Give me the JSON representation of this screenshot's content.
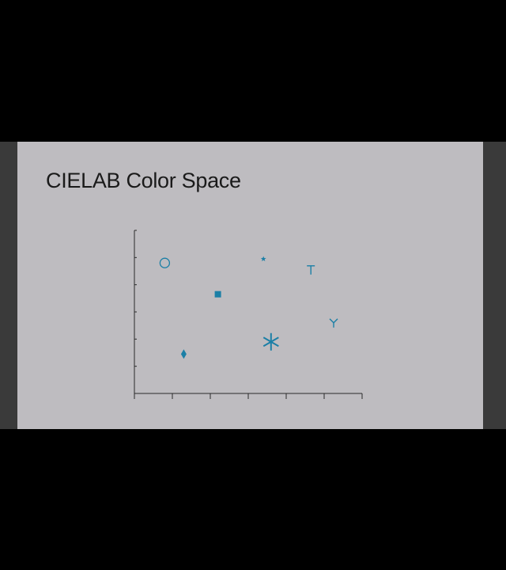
{
  "slide": {
    "title": "CIELAB Color Space"
  },
  "colors": {
    "marker": "#1b7fa6",
    "axis": "#2a2a2a",
    "slide_background": "#bebcc0",
    "letterbox": "#000000",
    "side_panel": "#3a3a3a"
  },
  "chart_data": {
    "type": "scatter",
    "title": "",
    "xlabel": "",
    "ylabel": "",
    "xlim": [
      0,
      6
    ],
    "ylim": [
      0,
      6
    ],
    "x_ticks": [
      0,
      1,
      2,
      3,
      4,
      5,
      6
    ],
    "y_ticks": [
      0,
      1,
      2,
      3,
      4,
      5,
      6
    ],
    "tick_labels_shown": false,
    "grid": false,
    "legend": "none",
    "points": [
      {
        "x": 0.8,
        "y": 4.8,
        "marker": "circle-open",
        "icon": "circle-icon"
      },
      {
        "x": 2.2,
        "y": 3.65,
        "marker": "square-filled",
        "icon": "square-icon"
      },
      {
        "x": 3.4,
        "y": 4.95,
        "marker": "star-small",
        "icon": "star-icon"
      },
      {
        "x": 4.65,
        "y": 4.55,
        "marker": "tri-down",
        "icon": "tri-down-icon"
      },
      {
        "x": 5.25,
        "y": 2.6,
        "marker": "tri-up",
        "icon": "tri-up-icon"
      },
      {
        "x": 3.6,
        "y": 1.9,
        "marker": "asterisk",
        "icon": "asterisk-icon"
      },
      {
        "x": 1.3,
        "y": 1.45,
        "marker": "diamond-thin",
        "icon": "diamond-icon"
      }
    ]
  }
}
